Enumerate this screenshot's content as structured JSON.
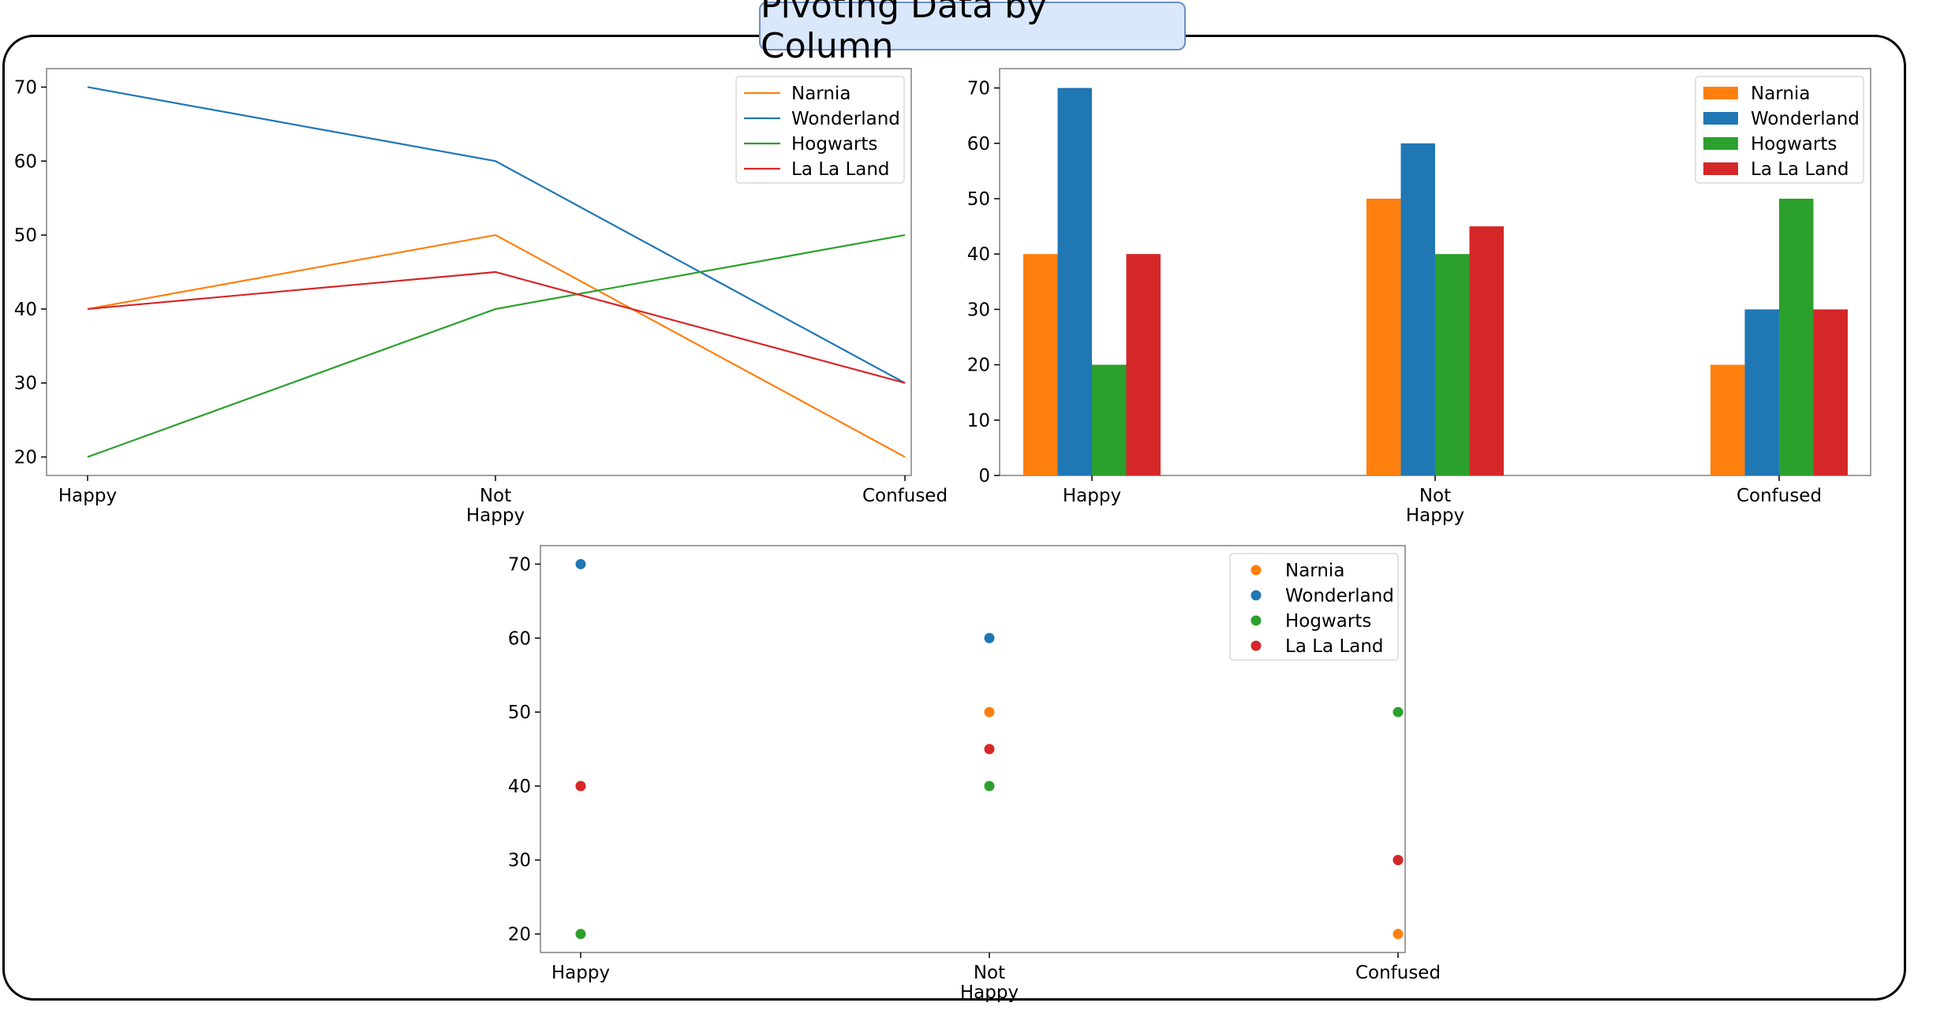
{
  "header": {
    "title": "Pivoting Data by Column"
  },
  "colors": {
    "Narnia": "#ff7f0e",
    "Wonderland": "#1f77b4",
    "Hogwarts": "#2ca02c",
    "La La Land": "#d62728"
  },
  "chart_data": [
    {
      "type": "line",
      "categories": [
        "Happy",
        "Not\nHappy",
        "Confused"
      ],
      "series": [
        {
          "name": "Narnia",
          "values": [
            40,
            50,
            20
          ]
        },
        {
          "name": "Wonderland",
          "values": [
            70,
            60,
            30
          ]
        },
        {
          "name": "Hogwarts",
          "values": [
            20,
            40,
            50
          ]
        },
        {
          "name": "La La Land",
          "values": [
            40,
            45,
            30
          ]
        }
      ],
      "yticks": [
        20,
        30,
        40,
        50,
        60,
        70
      ],
      "ylim": [
        17.5,
        72.5
      ],
      "legend": "top-right",
      "grid": false
    },
    {
      "type": "bar",
      "categories": [
        "Happy",
        "Not\nHappy",
        "Confused"
      ],
      "series": [
        {
          "name": "Narnia",
          "values": [
            40,
            50,
            20
          ]
        },
        {
          "name": "Wonderland",
          "values": [
            70,
            60,
            30
          ]
        },
        {
          "name": "Hogwarts",
          "values": [
            20,
            40,
            50
          ]
        },
        {
          "name": "La La Land",
          "values": [
            40,
            45,
            30
          ]
        }
      ],
      "yticks": [
        0,
        10,
        20,
        30,
        40,
        50,
        60,
        70
      ],
      "ylim": [
        0,
        73.5
      ],
      "legend": "top-right",
      "grid": false
    },
    {
      "type": "scatter",
      "categories": [
        "Happy",
        "Not\nHappy",
        "Confused"
      ],
      "series": [
        {
          "name": "Narnia",
          "values": [
            40,
            50,
            20
          ]
        },
        {
          "name": "Wonderland",
          "values": [
            70,
            60,
            30
          ]
        },
        {
          "name": "Hogwarts",
          "values": [
            20,
            40,
            50
          ]
        },
        {
          "name": "La La Land",
          "values": [
            40,
            45,
            30
          ]
        }
      ],
      "yticks": [
        20,
        30,
        40,
        50,
        60,
        70
      ],
      "ylim": [
        17.5,
        72.5
      ],
      "legend": "top-right",
      "grid": false
    }
  ]
}
